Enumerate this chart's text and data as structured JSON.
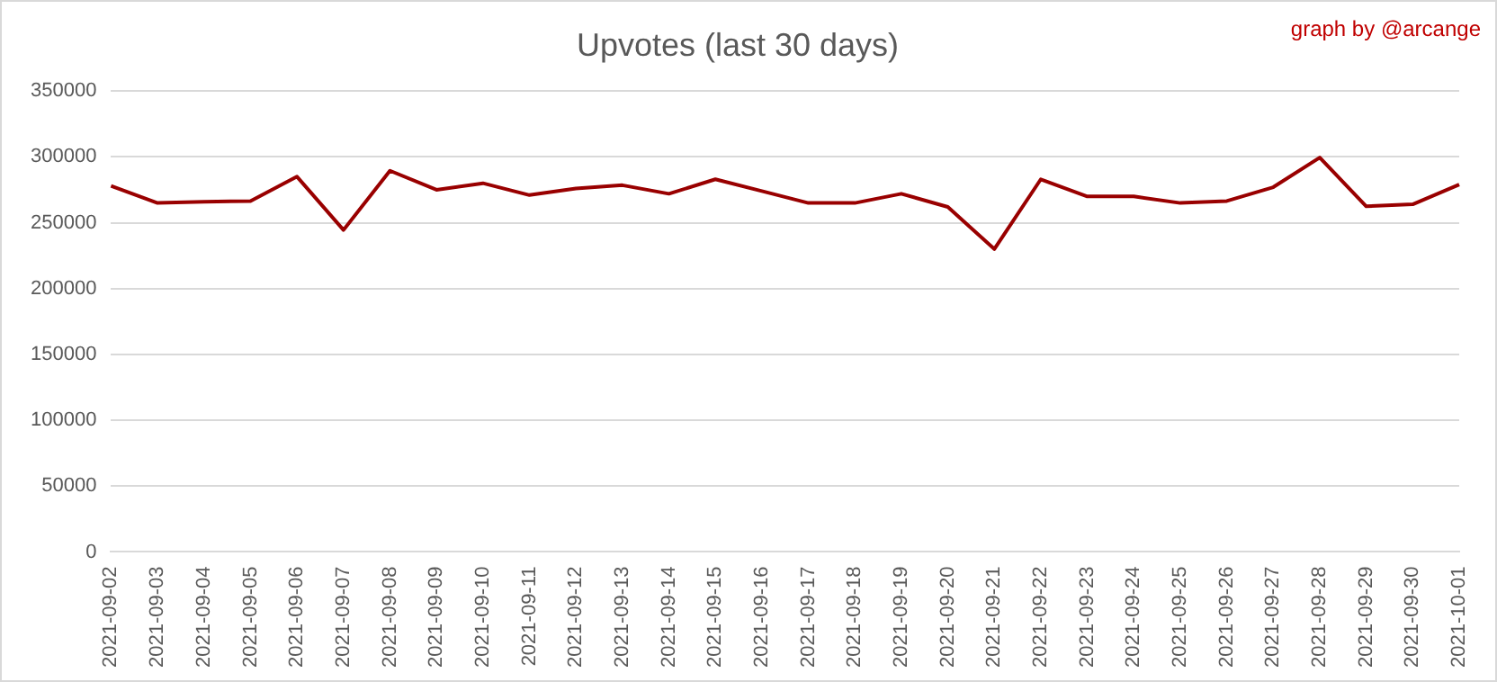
{
  "chart_data": {
    "type": "line",
    "title": "Upvotes (last 30 days)",
    "annotations": [
      "graph by @arcange"
    ],
    "categories": [
      "2021-09-02",
      "2021-09-03",
      "2021-09-04",
      "2021-09-05",
      "2021-09-06",
      "2021-09-07",
      "2021-09-08",
      "2021-09-09",
      "2021-09-10",
      "2021-09-11",
      "2021-09-12",
      "2021-09-13",
      "2021-09-14",
      "2021-09-15",
      "2021-09-16",
      "2021-09-17",
      "2021-09-18",
      "2021-09-19",
      "2021-09-20",
      "2021-09-21",
      "2021-09-22",
      "2021-09-23",
      "2021-09-24",
      "2021-09-25",
      "2021-09-26",
      "2021-09-27",
      "2021-09-28",
      "2021-09-29",
      "2021-09-30",
      "2021-10-01"
    ],
    "series": [
      {
        "color": "#990000",
        "values": [
          278000,
          265000,
          266000,
          266500,
          285000,
          244500,
          289500,
          275000,
          280000,
          271000,
          276000,
          278500,
          272000,
          283000,
          274000,
          265000,
          265000,
          272000,
          262000,
          230000,
          283000,
          270000,
          270000,
          265000,
          266500,
          277000,
          299500,
          262500,
          264000,
          279000
        ]
      }
    ],
    "ylim": [
      0,
      350000
    ],
    "yticks": [
      0,
      50000,
      100000,
      150000,
      200000,
      250000,
      300000,
      350000
    ],
    "grid": "y",
    "marker": "none",
    "line_style": "solid"
  }
}
